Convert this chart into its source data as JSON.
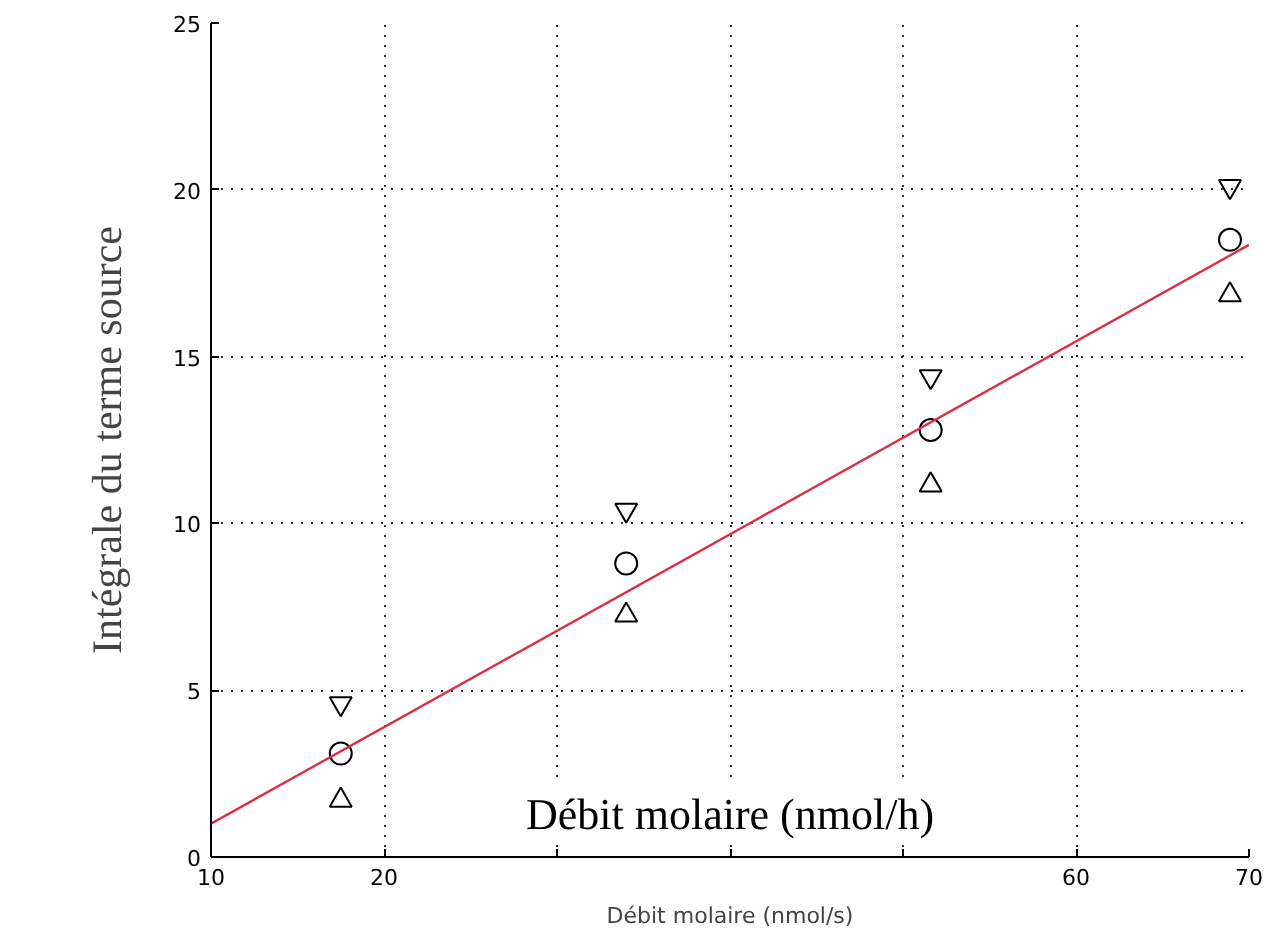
{
  "chart_data": {
    "type": "scatter",
    "xlabel": "Débit molaire (nmol/s)",
    "ylabel": "Intégrale du terme source",
    "annotations": [
      "Débit molaire (nmol/h)"
    ],
    "xlim": [
      10,
      70
    ],
    "xticks": [
      10,
      20,
      {
        "value": 30,
        "label": null
      },
      {
        "value": 40,
        "label": null
      },
      {
        "value": 50,
        "label": null
      },
      60,
      70
    ],
    "ylim": [
      0,
      25
    ],
    "yticks": [
      0,
      5,
      10,
      15,
      20,
      25
    ],
    "grid": true,
    "series": [
      {
        "type": "scatter",
        "color": "#000000",
        "x": [
          17.5,
          34,
          51.6,
          68.9
        ],
        "values": [
          4.6,
          10.4,
          14.4,
          20.1
        ]
      },
      {
        "type": "scatter",
        "marker": "circle",
        "color": "#000000",
        "x": [
          17.5,
          34,
          51.6,
          68.9
        ],
        "values": [
          3.1,
          8.8,
          12.8,
          18.5
        ]
      },
      {
        "type": "scatter",
        "marker": "triangle",
        "color": "#000000",
        "x": [
          17.5,
          34,
          51.6,
          68.9
        ],
        "values": [
          1.7,
          7.25,
          11.15,
          16.85
        ]
      },
      {
        "type": "line",
        "color": "#d9304a",
        "x": [
          10,
          70
        ],
        "values": [
          1.0,
          18.35
        ]
      }
    ]
  }
}
